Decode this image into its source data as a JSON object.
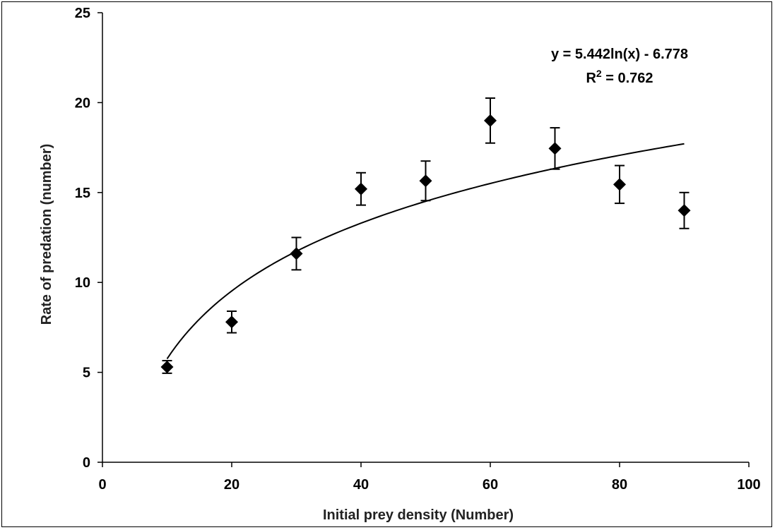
{
  "chart_data": {
    "type": "scatter",
    "xlabel": "Initial prey density (Number)",
    "ylabel": "Rate of predation (number)",
    "xlim": [
      0,
      100
    ],
    "ylim": [
      0,
      25
    ],
    "x_ticks": [
      "0",
      "20",
      "40",
      "60",
      "80",
      "100"
    ],
    "y_ticks": [
      "0",
      "5",
      "10",
      "15",
      "20",
      "25"
    ],
    "grid": false,
    "legend": "none",
    "series": [
      {
        "x": [
          10,
          20,
          30,
          40,
          50,
          60,
          70,
          80,
          90
        ],
        "y": [
          5.3,
          7.8,
          11.6,
          15.2,
          15.65,
          19.0,
          17.45,
          15.45,
          14.0
        ],
        "error": [
          0.35,
          0.6,
          0.9,
          0.9,
          1.1,
          1.25,
          1.15,
          1.05,
          1.0
        ]
      }
    ],
    "trendline": {
      "type": "logarithmic",
      "a": 5.442,
      "b": -6.778,
      "x_range": [
        10,
        90
      ],
      "equation_label": "y = 5.442ln(x) - 6.778",
      "r2_prefix": "R",
      "r2_superscript": "2",
      "r2_value": " = 0.762"
    },
    "colors": {
      "marker": "#000000",
      "line": "#000000"
    }
  }
}
